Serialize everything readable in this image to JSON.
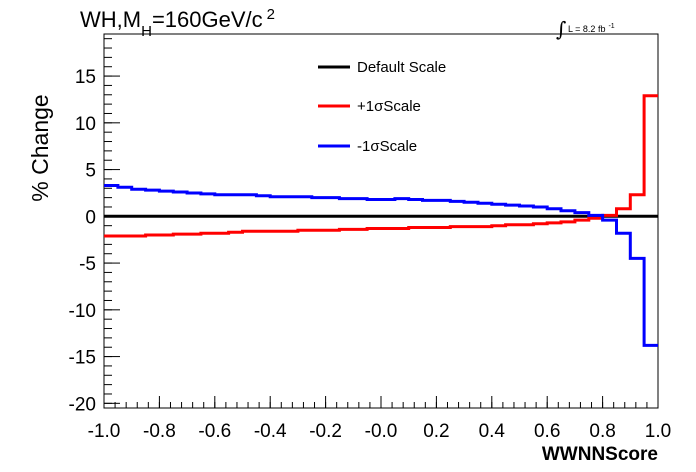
{
  "chart_data": {
    "type": "line",
    "title_main": "WH,M",
    "title_sub": "H",
    "title_rest": "=160GeV/c",
    "title_sup": "2",
    "lumi_sign": "∫",
    "lumi_text": "L = 8.2 fb",
    "lumi_sup": "-1",
    "xlabel": "WWNNScore",
    "ylabel": "% Change",
    "xlim": [
      -1.0,
      1.0
    ],
    "ylim": [
      -20.5,
      19.5
    ],
    "x_ticks": [
      "-1.0",
      "-0.8",
      "-0.6",
      "-0.4",
      "-0.2",
      "-0.0",
      "0.2",
      "0.4",
      "0.6",
      "0.8",
      "1.0"
    ],
    "y_ticks": [
      "-20",
      "-15",
      "-10",
      "-5",
      "0",
      "5",
      "10",
      "15"
    ],
    "legend_position": "top-center",
    "bin_edges": [
      -1.0,
      -0.95,
      -0.9,
      -0.85,
      -0.8,
      -0.75,
      -0.7,
      -0.65,
      -0.6,
      -0.55,
      -0.5,
      -0.45,
      -0.4,
      -0.35,
      -0.3,
      -0.25,
      -0.2,
      -0.15,
      -0.1,
      -0.05,
      0.0,
      0.05,
      0.1,
      0.15,
      0.2,
      0.25,
      0.3,
      0.35,
      0.4,
      0.45,
      0.5,
      0.55,
      0.6,
      0.65,
      0.7,
      0.75,
      0.8,
      0.85,
      0.9,
      0.95,
      1.0
    ],
    "series": [
      {
        "name": "Default Scale",
        "color": "#000000",
        "values": [
          0,
          0,
          0,
          0,
          0,
          0,
          0,
          0,
          0,
          0,
          0,
          0,
          0,
          0,
          0,
          0,
          0,
          0,
          0,
          0,
          0,
          0,
          0,
          0,
          0,
          0,
          0,
          0,
          0,
          0,
          0,
          0,
          0,
          0,
          0,
          0,
          0,
          0,
          0,
          0
        ]
      },
      {
        "name": "+1σScale",
        "color": "#ff0000",
        "values": [
          -2.1,
          -2.1,
          -2.1,
          -2.0,
          -2.0,
          -1.9,
          -1.9,
          -1.8,
          -1.8,
          -1.7,
          -1.6,
          -1.6,
          -1.6,
          -1.6,
          -1.5,
          -1.5,
          -1.5,
          -1.4,
          -1.4,
          -1.3,
          -1.3,
          -1.3,
          -1.2,
          -1.2,
          -1.2,
          -1.1,
          -1.1,
          -1.1,
          -1.0,
          -0.9,
          -0.9,
          -0.8,
          -0.7,
          -0.6,
          -0.4,
          -0.2,
          0.1,
          0.8,
          2.3,
          12.9
        ]
      },
      {
        "name": "-1σScale",
        "color": "#0000ff",
        "values": [
          3.3,
          3.1,
          2.9,
          2.8,
          2.7,
          2.6,
          2.5,
          2.4,
          2.3,
          2.3,
          2.3,
          2.2,
          2.1,
          2.1,
          2.1,
          2.0,
          2.0,
          1.9,
          1.9,
          1.8,
          1.8,
          1.9,
          1.8,
          1.7,
          1.7,
          1.6,
          1.5,
          1.4,
          1.3,
          1.2,
          1.1,
          1.0,
          0.8,
          0.6,
          0.4,
          0.1,
          -0.4,
          -1.8,
          -4.5,
          -13.8
        ]
      }
    ]
  }
}
